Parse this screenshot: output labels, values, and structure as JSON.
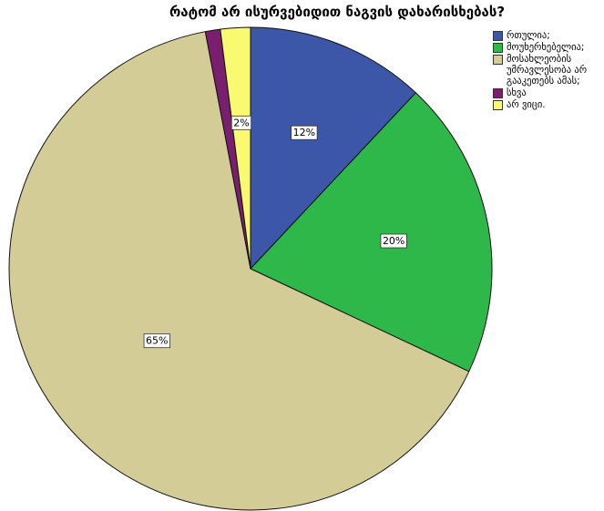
{
  "chart_data": {
    "type": "pie",
    "title": "რატომ არ ისურვებიდით ნაგვის დახარისხებას?",
    "categories": [
      "რთულია;",
      "მოუხერხებელია;",
      "მოსახლეობის უმრავლესობა არ გააკეთებს ამას;",
      "სხვა",
      "არ ვიცი."
    ],
    "values": [
      12,
      20,
      65,
      1,
      2
    ],
    "value_labels": [
      "12%",
      "20%",
      "65%",
      null,
      "2%"
    ],
    "colors": [
      "#3c56a8",
      "#2eb84a",
      "#d3cc97",
      "#7a1f6e",
      "#fafa70"
    ],
    "legend": "right"
  }
}
